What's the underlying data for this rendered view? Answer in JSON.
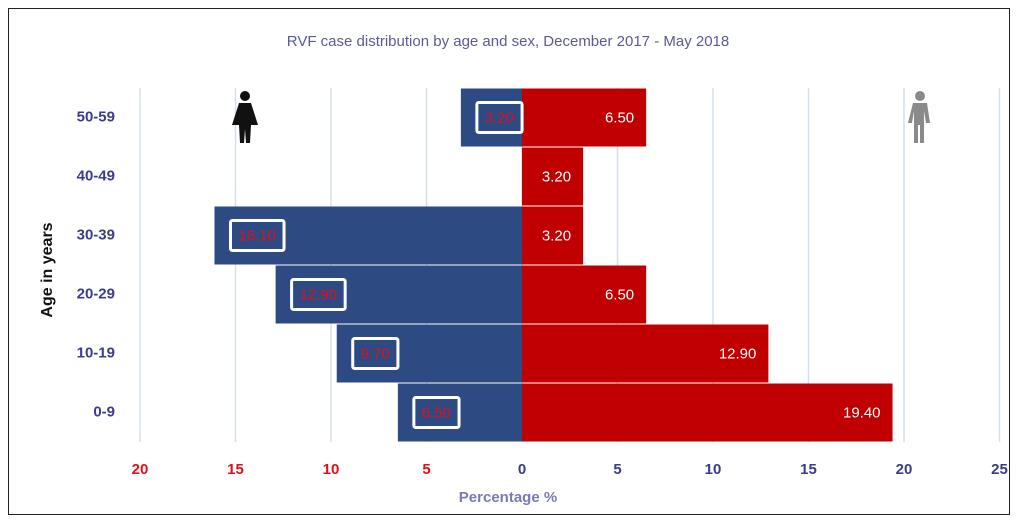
{
  "chart_data": {
    "type": "bar",
    "orientation": "horizontal",
    "layout": "pyramid",
    "title": "RVF case distribution by age and sex, December 2017 - May 2018",
    "x_label": "Percentage %",
    "y_label": "Age in years",
    "categories": [
      "0-9",
      "10-19",
      "20-29",
      "30-39",
      "40-49",
      "50-59"
    ],
    "series": [
      {
        "color": "#2e4a82",
        "side": "left",
        "values": [
          6.5,
          9.7,
          12.9,
          16.1,
          null,
          3.2
        ],
        "value_labels": [
          "6.50",
          "9.70",
          "12.90",
          "16.10",
          null,
          "3.20"
        ]
      },
      {
        "color": "#c00000",
        "side": "right",
        "values": [
          19.4,
          12.9,
          6.5,
          3.2,
          3.2,
          6.5
        ],
        "value_labels": [
          "19.40",
          "12.90",
          "6.50",
          "3.20",
          "3.20",
          "6.50"
        ]
      }
    ],
    "xlim": [
      -20,
      25
    ],
    "xticks": [
      {
        "value": -20,
        "label": "20"
      },
      {
        "value": -15,
        "label": "15"
      },
      {
        "value": -10,
        "label": "10"
      },
      {
        "value": -5,
        "label": "5"
      },
      0,
      5,
      10,
      15,
      20,
      25
    ],
    "grid": true
  }
}
